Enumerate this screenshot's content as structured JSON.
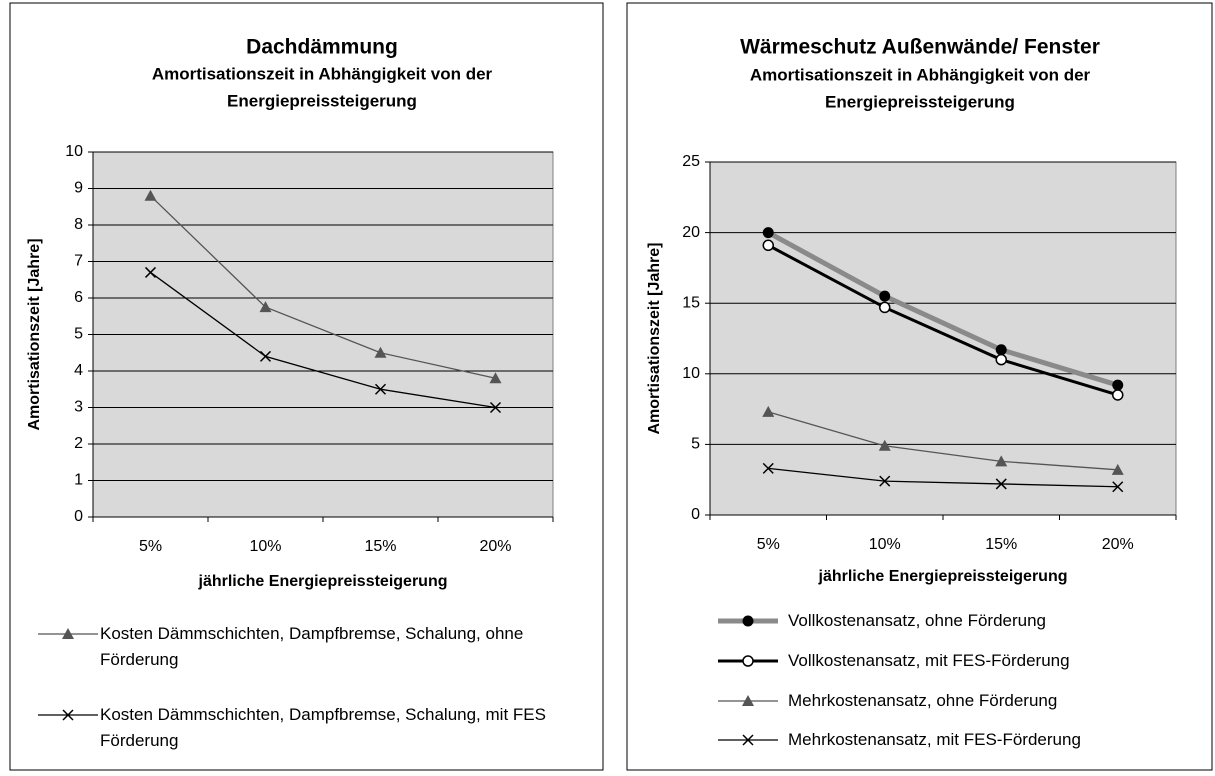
{
  "chart_data": [
    {
      "type": "line",
      "title": "Dachdämmung",
      "subtitle": [
        "Amortisationszeit in Abhängigkeit von der",
        "Energiepreissteigerung"
      ],
      "x_label": "jährliche Energiepreissteigerung",
      "y_label": "Amortisationszeit [Jahre]",
      "categories": [
        "5%",
        "10%",
        "15%",
        "20%"
      ],
      "ylim": [
        0,
        10
      ],
      "yticks": [
        0,
        1,
        2,
        3,
        4,
        5,
        6,
        7,
        8,
        9,
        10
      ],
      "grid": true,
      "series": [
        {
          "name": "Kosten Dämmschichten, Dampfbremse, Schalung, ohne Förderung",
          "color": "#555555",
          "marker": "triangle",
          "values": [
            8.8,
            5.75,
            4.5,
            3.8
          ]
        },
        {
          "name": "Kosten Dämmschichten, Dampfbremse, Schalung, mit FES Förderung",
          "color": "#000000",
          "marker": "x",
          "values": [
            6.7,
            4.4,
            3.5,
            3.0
          ]
        }
      ]
    },
    {
      "type": "line",
      "title": "Wärmeschutz Außenwände/ Fenster",
      "subtitle": [
        "Amortisationszeit in Abhängigkeit von der",
        "Energiepreissteigerung"
      ],
      "x_label": "jährliche Energiepreissteigerung",
      "y_label": "Amortisationszeit [Jahre]",
      "categories": [
        "5%",
        "10%",
        "15%",
        "20%"
      ],
      "ylim": [
        0,
        25
      ],
      "yticks": [
        0,
        5,
        10,
        15,
        20,
        25
      ],
      "grid": true,
      "series": [
        {
          "name": "Vollkostenansatz, ohne Förderung",
          "color": "#8a8a8a",
          "marker": "circle-filled",
          "line_width": 5,
          "values": [
            20.0,
            15.5,
            11.7,
            9.2
          ]
        },
        {
          "name": "Vollkostenansatz, mit FES-Förderung",
          "color": "#000000",
          "marker": "circle-open",
          "line_width": 3,
          "values": [
            19.1,
            14.7,
            11.0,
            8.5
          ]
        },
        {
          "name": "Mehrkostenansatz, ohne Förderung",
          "color": "#555555",
          "marker": "triangle",
          "values": [
            7.3,
            4.9,
            3.8,
            3.2
          ]
        },
        {
          "name": "Mehrkostenansatz, mit FES-Förderung",
          "color": "#000000",
          "marker": "x",
          "values": [
            3.3,
            2.4,
            2.2,
            2.0
          ]
        }
      ]
    }
  ]
}
